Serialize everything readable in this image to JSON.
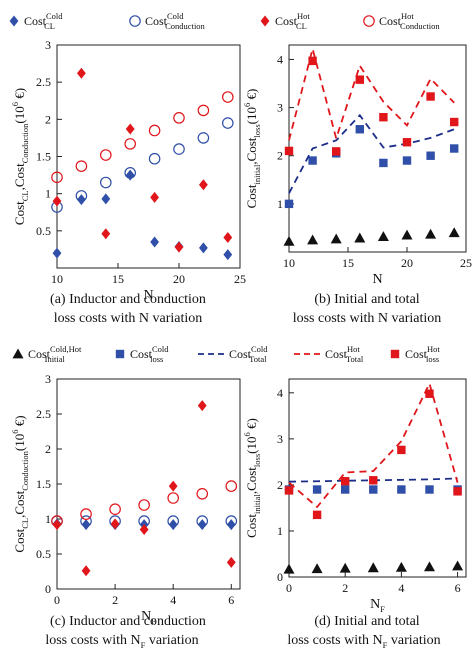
{
  "colors": {
    "blue": "#2f4fa8",
    "red": "#e0161b",
    "black": "#111111",
    "navy": "#1c2e8a"
  },
  "legend_top": [
    {
      "base": "Cost",
      "sup": "Cold",
      "sub": "CL",
      "marker": "diamond",
      "color": "#2f4fa8"
    },
    {
      "base": "Cost",
      "sup": "Cold",
      "sub": "Conduction",
      "marker": "circle-open",
      "color": "#2f4fa8"
    },
    {
      "base": "Cost",
      "sup": "Hot",
      "sub": "CL",
      "marker": "diamond",
      "color": "#e0161b"
    },
    {
      "base": "Cost",
      "sup": "Hot",
      "sub": "Conduction",
      "marker": "circle-open",
      "color": "#e0161b"
    }
  ],
  "legend_mid": [
    {
      "base": "Cost",
      "sup": "Cold,Hot",
      "sub": "Initial",
      "marker": "triangle",
      "color": "#111111"
    },
    {
      "base": "Cost",
      "sup": "Cold",
      "sub": "loss",
      "marker": "square",
      "color": "#2f4fa8"
    },
    {
      "base": "Cost",
      "sup": "Cold",
      "sub": "Total",
      "marker": "dash",
      "color": "#1c2e8a"
    },
    {
      "base": "Cost",
      "sup": "Hot",
      "sub": "Total",
      "marker": "dash",
      "color": "#e0161b"
    },
    {
      "base": "Cost",
      "sup": "Hot",
      "sub": "loss",
      "marker": "square",
      "color": "#e0161b"
    }
  ],
  "captions": {
    "a": [
      "(a) Inductor and conduction",
      "loss costs with N variation"
    ],
    "b": [
      "(b) Initial and total",
      "loss costs with N variation"
    ],
    "c": [
      "(c) Inductor and conduction",
      "loss costs with N",
      "F",
      " variation"
    ],
    "d": [
      "(d) Initial and total",
      "loss costs with N",
      "F",
      " variation"
    ]
  },
  "chart_data": [
    {
      "id": "a",
      "type": "scatter",
      "xlabel": "N",
      "ylabel_parts": [
        "Cost",
        "CL",
        ",Cost",
        "Conduction",
        "(10",
        "6",
        " €)"
      ],
      "xlim": [
        10,
        25
      ],
      "ylim": [
        0,
        3
      ],
      "xticks": [
        10,
        15,
        20,
        25
      ],
      "yticks": [
        0.5,
        1,
        1.5,
        2,
        2.5,
        3
      ],
      "x": [
        10,
        12,
        14,
        16,
        18,
        20,
        22,
        24
      ],
      "series": [
        {
          "key": "cold_cl",
          "marker": "diamond",
          "color": "#2f4fa8",
          "values": [
            0.2,
            0.92,
            0.93,
            1.25,
            0.35,
            0.29,
            0.27,
            0.18
          ]
        },
        {
          "key": "cold_cond",
          "marker": "circle-open",
          "color": "#2f4fa8",
          "values": [
            0.82,
            0.97,
            1.15,
            1.28,
            1.47,
            1.6,
            1.75,
            1.95
          ]
        },
        {
          "key": "hot_cl",
          "marker": "diamond",
          "color": "#e0161b",
          "values": [
            0.9,
            2.62,
            0.46,
            1.87,
            0.95,
            0.28,
            1.12,
            0.41
          ]
        },
        {
          "key": "hot_cond",
          "marker": "circle-open",
          "color": "#e0161b",
          "values": [
            1.22,
            1.37,
            1.52,
            1.67,
            1.85,
            2.02,
            2.12,
            2.3
          ]
        }
      ]
    },
    {
      "id": "b",
      "type": "line",
      "xlabel": "N",
      "ylabel_parts": [
        "Cost",
        "initial",
        ",Cost",
        "loss",
        "(10",
        "6",
        " €)"
      ],
      "xlim": [
        10,
        25
      ],
      "ylim": [
        0,
        4.3
      ],
      "xticks": [
        10,
        15,
        20,
        25
      ],
      "yticks": [
        1,
        2,
        3,
        4
      ],
      "x": [
        10,
        12,
        14,
        16,
        18,
        20,
        22,
        24
      ],
      "series": [
        {
          "key": "initial",
          "marker": "triangle",
          "color": "#111111",
          "values": [
            0.22,
            0.25,
            0.27,
            0.29,
            0.32,
            0.35,
            0.37,
            0.4
          ]
        },
        {
          "key": "cold_loss",
          "marker": "square",
          "color": "#2f4fa8",
          "values": [
            1.0,
            1.9,
            2.05,
            2.55,
            1.85,
            1.9,
            2.0,
            2.15
          ]
        },
        {
          "key": "cold_total",
          "marker": "dash",
          "color": "#1c2e8a",
          "values": [
            1.22,
            2.15,
            2.32,
            2.84,
            2.17,
            2.25,
            2.37,
            2.55
          ]
        },
        {
          "key": "hot_total",
          "marker": "dash",
          "color": "#e0161b",
          "values": [
            2.32,
            4.22,
            2.36,
            3.87,
            3.12,
            2.63,
            3.6,
            3.1
          ]
        },
        {
          "key": "hot_loss",
          "marker": "square",
          "color": "#e0161b",
          "values": [
            2.1,
            3.97,
            2.09,
            3.58,
            2.8,
            2.28,
            3.23,
            2.7
          ]
        }
      ]
    },
    {
      "id": "c",
      "type": "scatter",
      "xlabel": "N",
      "xlabel_sub": "F",
      "ylabel_parts": [
        "Cost",
        "CL",
        ",Cost",
        "Conduction",
        "(10",
        "6",
        " €)"
      ],
      "xlim": [
        0,
        6.3
      ],
      "ylim": [
        0,
        3
      ],
      "xticks": [
        0,
        2,
        4,
        6
      ],
      "yticks": [
        0,
        0.5,
        1,
        1.5,
        2,
        2.5,
        3
      ],
      "x": [
        0,
        1,
        2,
        3,
        4,
        5,
        6
      ],
      "series": [
        {
          "key": "cold_cl",
          "marker": "diamond",
          "color": "#2f4fa8",
          "values": [
            0.93,
            0.92,
            0.92,
            0.92,
            0.92,
            0.92,
            0.92
          ]
        },
        {
          "key": "cold_cond",
          "marker": "circle-open",
          "color": "#2f4fa8",
          "values": [
            0.97,
            0.97,
            0.97,
            0.97,
            0.97,
            0.97,
            0.97
          ]
        },
        {
          "key": "hot_cl",
          "marker": "diamond",
          "color": "#e0161b",
          "values": [
            0.92,
            0.26,
            0.93,
            0.85,
            1.47,
            2.62,
            0.38
          ]
        },
        {
          "key": "hot_cond",
          "marker": "circle-open",
          "color": "#e0161b",
          "values": [
            0.97,
            1.07,
            1.14,
            1.2,
            1.3,
            1.36,
            1.47
          ]
        }
      ]
    },
    {
      "id": "d",
      "type": "line",
      "xlabel": "N",
      "xlabel_sub": "F",
      "ylabel_parts": [
        "Cost",
        "initial",
        ",Cost",
        "loss",
        "(10",
        "6",
        " €)"
      ],
      "xlim": [
        0,
        6.3
      ],
      "ylim": [
        0,
        4.3
      ],
      "xticks": [
        0,
        2,
        4,
        6
      ],
      "yticks": [
        0,
        1,
        2,
        3,
        4
      ],
      "x": [
        0,
        1,
        2,
        3,
        4,
        5,
        6
      ],
      "series": [
        {
          "key": "initial",
          "marker": "triangle",
          "color": "#111111",
          "values": [
            0.17,
            0.18,
            0.19,
            0.2,
            0.21,
            0.22,
            0.24
          ]
        },
        {
          "key": "cold_loss",
          "marker": "square",
          "color": "#2f4fa8",
          "values": [
            1.9,
            1.9,
            1.9,
            1.9,
            1.9,
            1.9,
            1.9
          ]
        },
        {
          "key": "cold_total",
          "marker": "dash",
          "color": "#1c2e8a",
          "values": [
            2.07,
            2.08,
            2.09,
            2.1,
            2.11,
            2.12,
            2.14
          ]
        },
        {
          "key": "hot_total",
          "marker": "dash",
          "color": "#e0161b",
          "values": [
            2.05,
            1.52,
            2.27,
            2.3,
            2.95,
            4.2,
            2.05
          ]
        },
        {
          "key": "hot_loss",
          "marker": "square",
          "color": "#e0161b",
          "values": [
            1.88,
            1.35,
            2.08,
            2.1,
            2.76,
            3.98,
            1.86
          ]
        }
      ]
    }
  ]
}
